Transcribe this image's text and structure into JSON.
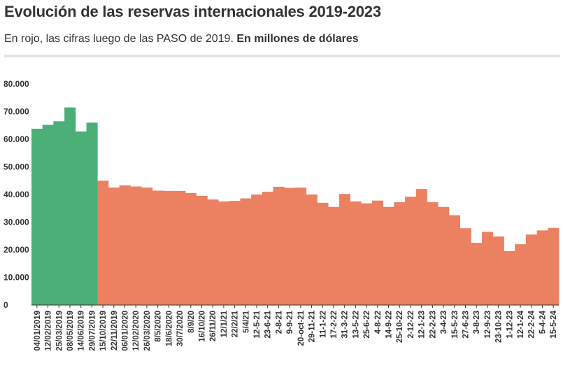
{
  "title": "Evolución de las reservas internacionales 2019-2023",
  "subtitle": {
    "lead": "En rojo, las cifras luego de las PASO de 2019.",
    "emphasis": "En millones de dólares"
  },
  "colors": {
    "before": "#4caf78",
    "after": "#ec8162"
  },
  "chart_data": {
    "type": "bar",
    "ylim": [
      0,
      80000
    ],
    "yticks": [
      0,
      10000,
      20000,
      30000,
      40000,
      50000,
      60000,
      70000,
      80000
    ],
    "ytick_labels": [
      "0",
      "10.000",
      "20.000",
      "30.000",
      "40.000",
      "50.000",
      "60.000",
      "70.000",
      "80.000"
    ],
    "x_tick_labels": [
      "04/01/2019",
      "12/02/2019",
      "25/03/2019",
      "08/05/2019",
      "14/06/2019",
      "29/07/2019",
      "15/10/2019",
      "22/11/2019",
      "06/01/2020",
      "12/02/2020",
      "26/03/2020",
      "8/5/2020",
      "18/6/2020",
      "30/7/2020",
      "8/9/20",
      "16/10/20",
      "26/11/20",
      "12/1/21",
      "22/2/21",
      "5/4/21",
      "12-5-21",
      "23-6-21",
      "2-8-21",
      "9-9-21",
      "20-oct-21",
      "29-11-21",
      "11-1-22",
      "17-2-22",
      "31-3-22",
      "13-5-22",
      "25-6-22",
      "4-8-22",
      "14-9-22",
      "25-10-22",
      "2-12-22",
      "12-1-23",
      "22-2-23",
      "3-4-23",
      "15-5-23",
      "27-6-23",
      "3-8-23",
      "12-9-23",
      "23-10-23",
      "1-12-23",
      "12-1-24",
      "22-2-24",
      "5-4-24",
      "15-5-24"
    ],
    "series": [
      {
        "name": "",
        "segment": "before",
        "x": [
          "04/01/2019",
          "12/02/2019",
          "25/03/2019",
          "08/05/2019",
          "14/06/2019",
          "29/07/2019"
        ],
        "values": [
          63800,
          65200,
          66500,
          71500,
          62800,
          66000
        ]
      },
      {
        "name": "",
        "segment": "after",
        "x": [
          "15/10/2019",
          "22/11/2019",
          "06/01/2020",
          "12/02/2020",
          "26/03/2020",
          "8/5/2020",
          "18/6/2020",
          "30/7/2020",
          "8/9/20",
          "16/10/20",
          "26/11/20",
          "12/1/21",
          "22/2/21",
          "5/4/21",
          "12-5-21",
          "23-6-21",
          "2-8-21",
          "9-9-21",
          "20-oct-21",
          "29-11-21",
          "11-1-22",
          "17-2-22",
          "31-3-22",
          "13-5-22",
          "25-6-22",
          "4-8-22",
          "14-9-22",
          "25-10-22",
          "2-12-22",
          "12-1-23",
          "22-2-23",
          "3-4-23",
          "15-5-23",
          "27-6-23",
          "3-8-23",
          "12-9-23",
          "23-10-23",
          "1-12-23",
          "12-1-24",
          "22-2-24",
          "5-4-24",
          "15-5-24"
        ],
        "values": [
          45000,
          42500,
          43300,
          42900,
          42500,
          41400,
          41300,
          41300,
          40500,
          39500,
          38200,
          37500,
          37700,
          38600,
          40000,
          41000,
          42800,
          42400,
          42500,
          40000,
          37000,
          35500,
          40200,
          37500,
          36800,
          37800,
          35500,
          37200,
          39200,
          42000,
          37200,
          35500,
          32500,
          27800,
          22500,
          26500,
          24800,
          19500,
          22000,
          25500,
          27000,
          27900
        ]
      }
    ]
  }
}
